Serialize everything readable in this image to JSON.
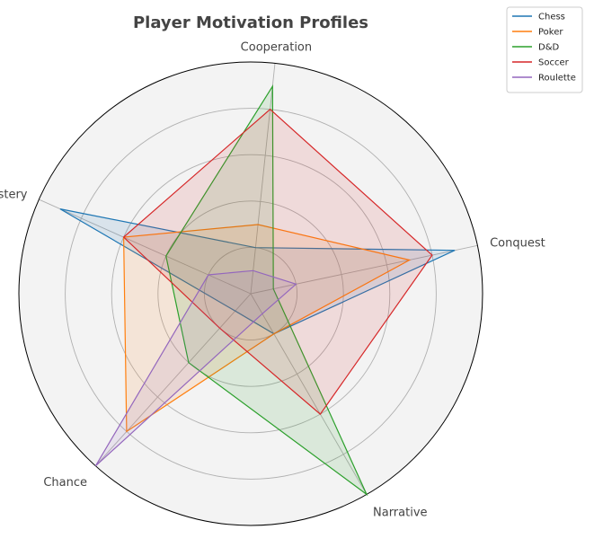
{
  "chart_data": {
    "type": "radar",
    "title": "Player Motivation Profiles",
    "axes": [
      "Conquest",
      "Cooperation",
      "Mastery",
      "Chance",
      "Narrative"
    ],
    "rlim": [
      0,
      5
    ],
    "rticks": [
      1,
      2,
      3,
      4,
      5
    ],
    "grid": true,
    "legend_position": "top-right",
    "series": [
      {
        "name": "Chess",
        "color": "#1f77b4",
        "values": [
          4.5,
          1.0,
          4.5,
          0.5,
          1.0
        ]
      },
      {
        "name": "Poker",
        "color": "#ff7f0e",
        "values": [
          3.5,
          1.5,
          3.0,
          4.0,
          1.0
        ]
      },
      {
        "name": "D&D",
        "color": "#2ca02c",
        "values": [
          0.5,
          4.5,
          2.0,
          2.0,
          5.0
        ]
      },
      {
        "name": "Soccer",
        "color": "#d62728",
        "values": [
          4.0,
          4.0,
          3.0,
          1.0,
          3.0
        ]
      },
      {
        "name": "Roulette",
        "color": "#9467bd",
        "values": [
          1.0,
          0.5,
          1.0,
          5.0,
          0.5
        ]
      }
    ]
  }
}
